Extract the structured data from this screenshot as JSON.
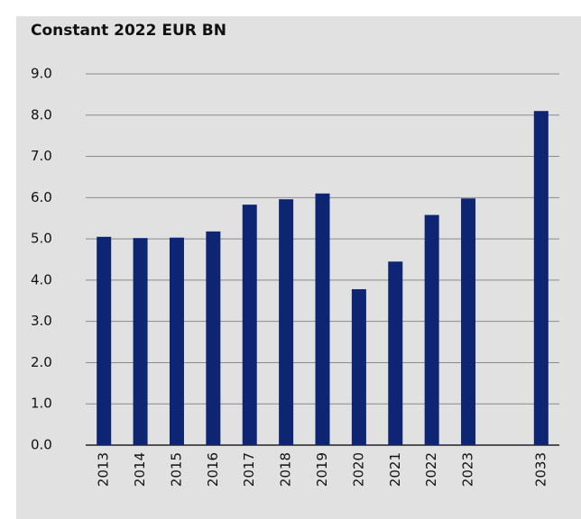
{
  "chart_data": {
    "type": "bar",
    "title": "Constant 2022 EUR BN",
    "categories": [
      "2013",
      "2014",
      "2015",
      "2016",
      "2017",
      "2018",
      "2019",
      "2020",
      "2021",
      "2022",
      "2023",
      null,
      "2033"
    ],
    "values": [
      5.05,
      5.02,
      5.03,
      5.18,
      5.83,
      5.96,
      6.1,
      3.78,
      4.45,
      5.58,
      5.98,
      null,
      8.1
    ],
    "color": "#0e2573",
    "ylim": [
      0,
      9
    ],
    "yticks": [
      {
        "value": 0,
        "label": "0.0"
      },
      {
        "value": 1,
        "label": "1.0"
      },
      {
        "value": 2,
        "label": "2.0"
      },
      {
        "value": 3,
        "label": "3.0"
      },
      {
        "value": 4,
        "label": "4.0"
      },
      {
        "value": 5,
        "label": "5.0"
      },
      {
        "value": 6,
        "label": "6.0"
      },
      {
        "value": 7,
        "label": "7.0"
      },
      {
        "value": 8,
        "label": "8.0"
      },
      {
        "value": 9,
        "label": "9.0"
      }
    ],
    "grid": true
  }
}
